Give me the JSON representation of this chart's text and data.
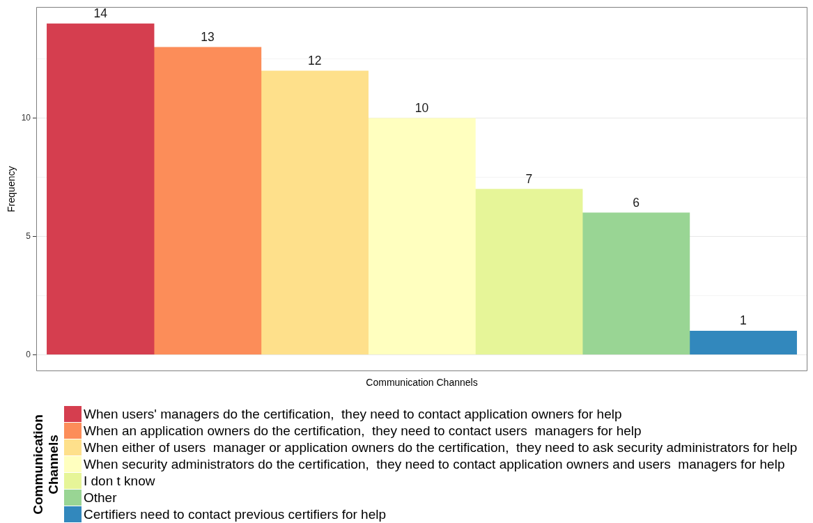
{
  "chart_data": {
    "type": "bar",
    "categories": [
      null,
      null,
      null,
      null,
      null,
      null,
      null
    ],
    "series": [
      {
        "name": "When users' managers do the certification,  they need to contact application owners for help",
        "color": "#d53e4f",
        "values": [
          14,
          null,
          null,
          null,
          null,
          null,
          null
        ]
      },
      {
        "name": "When an application owners do the certification,  they need to contact users  managers for help",
        "color": "#fc8d59",
        "values": [
          null,
          13,
          null,
          null,
          null,
          null,
          null
        ]
      },
      {
        "name": "When either of users  manager or application owners do the certification,  they need to ask security administrators for help",
        "color": "#fee08b",
        "values": [
          null,
          null,
          12,
          null,
          null,
          null,
          null
        ]
      },
      {
        "name": "When security administrators do the certification,  they need to contact application owners and users  managers for help",
        "color": "#ffffbf",
        "values": [
          null,
          null,
          null,
          10,
          null,
          null,
          null
        ]
      },
      {
        "name": "I don t know",
        "color": "#e6f598",
        "values": [
          null,
          null,
          null,
          null,
          7,
          null,
          null
        ]
      },
      {
        "name": "Other",
        "color": "#99d594",
        "values": [
          null,
          null,
          null,
          null,
          null,
          6,
          null
        ]
      },
      {
        "name": "Certifiers need to contact previous certifiers for help",
        "color": "#3288bd",
        "values": [
          null,
          null,
          null,
          null,
          null,
          null,
          1
        ]
      }
    ],
    "xlabel": "Communication Channels",
    "ylabel": "Frequency",
    "legend_title": "Communication Channels",
    "ylim": [
      -0.7,
      14.7
    ],
    "yticks": [
      0,
      {
        "value": 2.5,
        "label": null
      },
      5,
      {
        "value": 7.5,
        "label": null
      },
      10,
      {
        "value": 12.5,
        "label": null
      }
    ],
    "grid": "y",
    "legend": "bottom",
    "data_labels": true
  }
}
